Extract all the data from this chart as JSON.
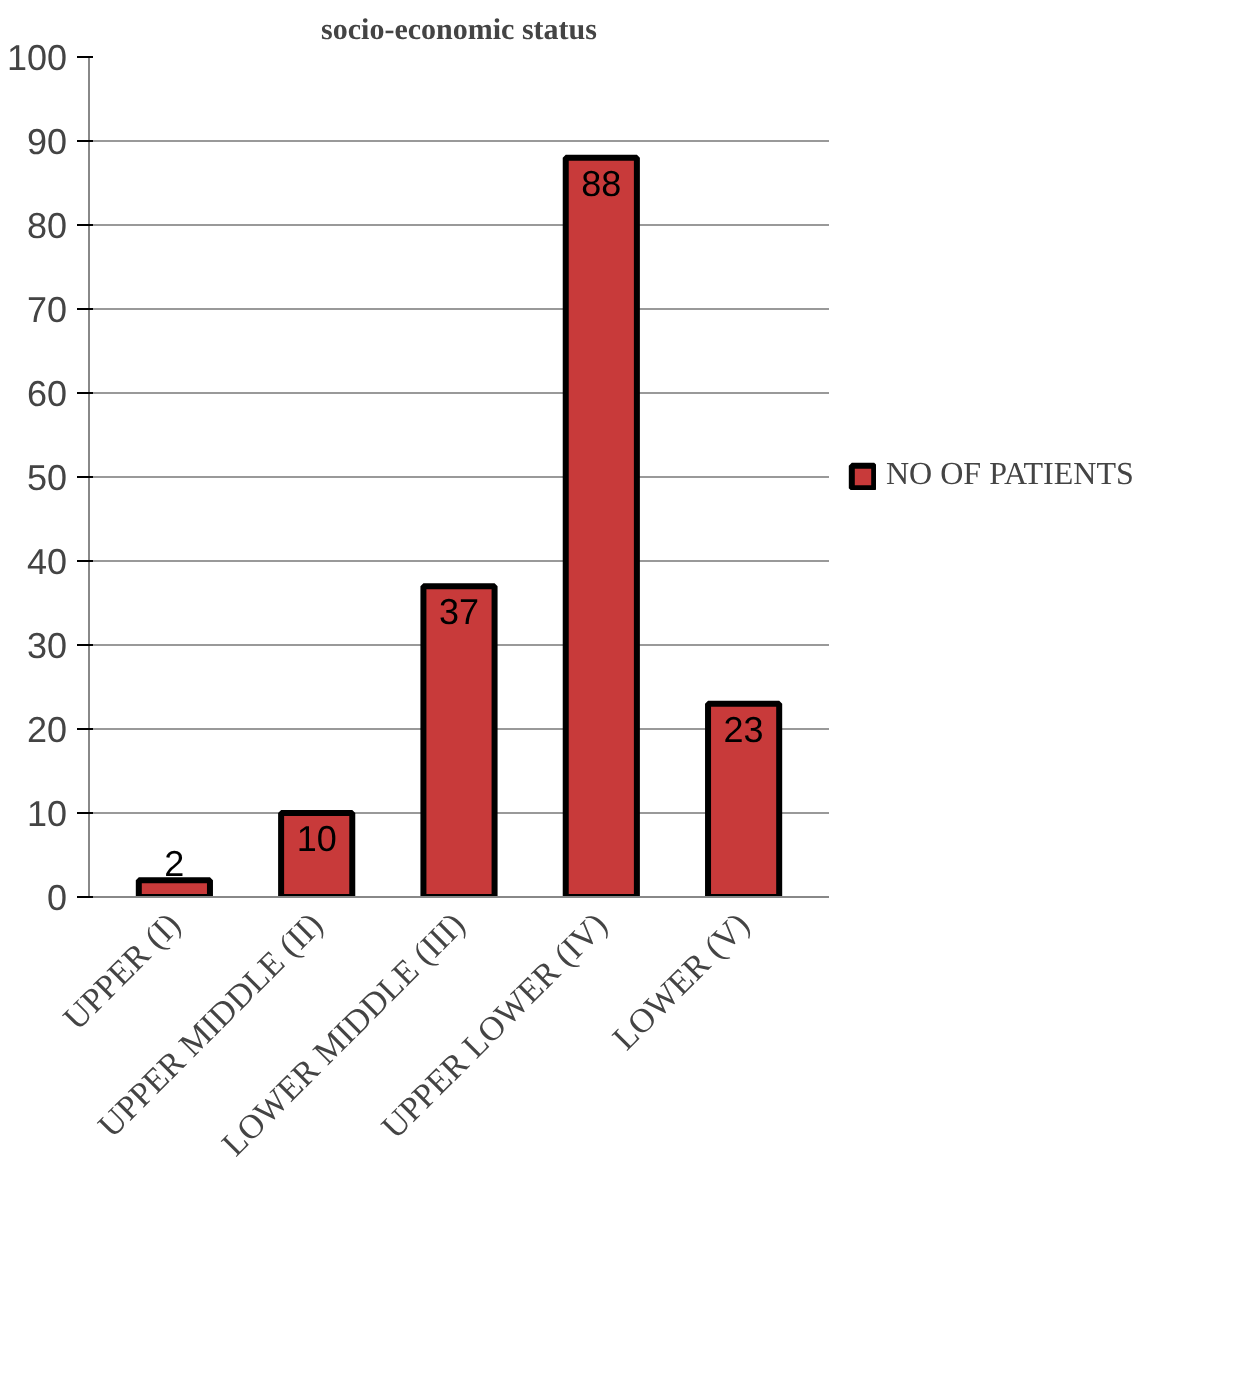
{
  "chart_data": {
    "type": "bar",
    "title": "socio-economic status",
    "categories": [
      "UPPER (I)",
      "UPPER MIDDLE (II)",
      "LOWER MIDDLE (III)",
      "UPPER LOWER (IV)",
      "LOWER (V)"
    ],
    "series": [
      {
        "name": "NO OF PATIENTS",
        "color": "#c83a3a",
        "values": [
          2,
          10,
          37,
          88,
          23
        ]
      }
    ],
    "ylim": [
      0,
      100
    ],
    "yticks": [
      0,
      10,
      20,
      30,
      40,
      50,
      60,
      70,
      80,
      90,
      100
    ],
    "grid": "y",
    "legend": "right",
    "data_labels": true
  }
}
